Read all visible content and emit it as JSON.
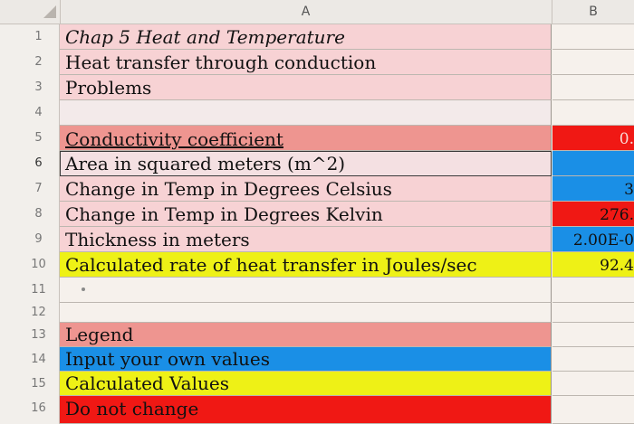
{
  "columns": [
    "A",
    "B"
  ],
  "rows": [
    {
      "num": "1",
      "text": "Chap 5 Heat and Temperature",
      "value": ""
    },
    {
      "num": "2",
      "text": "Heat transfer through conduction",
      "value": ""
    },
    {
      "num": "3",
      "text": "Problems",
      "value": ""
    },
    {
      "num": "4",
      "text": "",
      "value": ""
    },
    {
      "num": "5",
      "text": "Conductivity coefficient",
      "value": "0."
    },
    {
      "num": "6",
      "text": "Area in squared meters (m^2)",
      "value": ""
    },
    {
      "num": "7",
      "text": "Change in Temp in Degrees Celsius",
      "value": "3"
    },
    {
      "num": "8",
      "text": "Change in Temp in Degrees Kelvin",
      "value": "276."
    },
    {
      "num": "9",
      "text": "Thickness in meters",
      "value": "2.00E-0"
    },
    {
      "num": "10",
      "text": "Calculated rate of heat transfer in Joules/sec",
      "value": "92.4"
    },
    {
      "num": "11",
      "text": "",
      "value": ""
    },
    {
      "num": "12",
      "text": "",
      "value": ""
    },
    {
      "num": "13",
      "text": "Legend",
      "value": ""
    },
    {
      "num": "14",
      "text": "Input your own values",
      "value": ""
    },
    {
      "num": "15",
      "text": "Calculated Values",
      "value": ""
    },
    {
      "num": "16",
      "text": "Do not change",
      "value": ""
    }
  ],
  "colors": {
    "pink": "#f7d2d4",
    "salmon": "#ee9590",
    "blue": "#1a8fe6",
    "yellow": "#eef116",
    "red": "#f01814",
    "light": "#f6f1ec"
  }
}
